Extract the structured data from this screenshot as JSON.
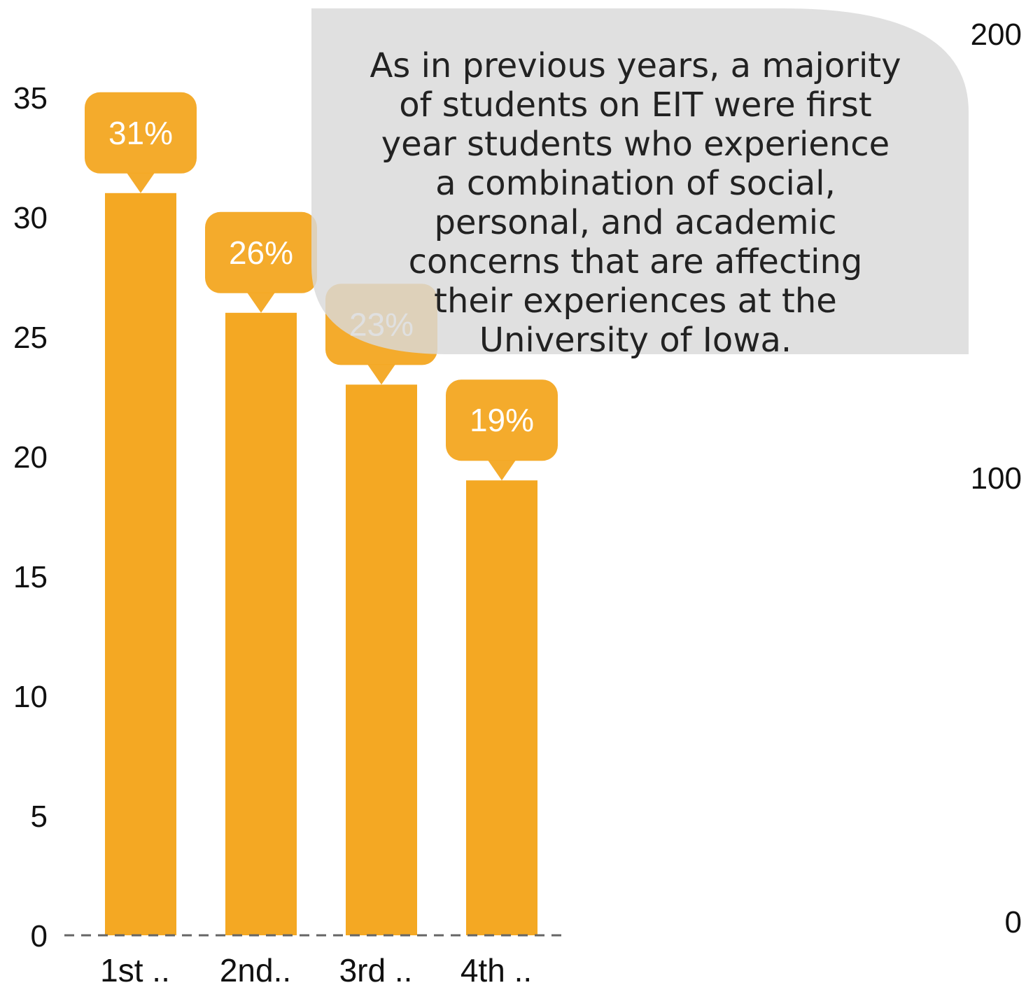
{
  "chart_data": {
    "type": "bar",
    "categories": [
      "1st ..",
      "2nd..",
      "3rd ..",
      "4th .."
    ],
    "values": [
      31,
      26,
      23,
      19
    ],
    "data_labels": [
      "31%",
      "26%",
      "23%",
      "19%"
    ],
    "ylim": [
      0,
      35
    ],
    "y_ticks": [
      0,
      5,
      10,
      15,
      20,
      25,
      30,
      35
    ],
    "y2lim": [
      0,
      200
    ],
    "y2_ticks": [
      0,
      100,
      200
    ],
    "bar_color": "#F4A823",
    "baseline_style": "dashed",
    "grid": false,
    "annotation": {
      "lines": [
        "As in previous years, a majority",
        "of students on EIT were first",
        "year students who experience",
        "a combination of social,",
        "personal, and academic",
        "concerns that are affecting",
        "their experiences at the",
        "University of Iowa."
      ],
      "background": "#D9D9D9"
    }
  }
}
